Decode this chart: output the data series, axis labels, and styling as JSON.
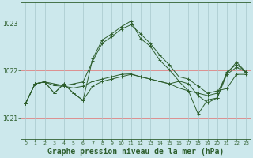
{
  "title": "Graphe pression niveau de la mer (hPa)",
  "background_color": "#cce8ec",
  "grid_color_h": "#e08080",
  "grid_color_v": "#a8c8cc",
  "line_color": "#2d5e2d",
  "ylim": [
    1020.55,
    1023.45
  ],
  "xlim": [
    -0.5,
    23.5
  ],
  "yticks": [
    1021,
    1022,
    1023
  ],
  "xticks": [
    0,
    1,
    2,
    3,
    4,
    5,
    6,
    7,
    8,
    9,
    10,
    11,
    12,
    13,
    14,
    15,
    16,
    17,
    18,
    19,
    20,
    21,
    22,
    23
  ],
  "series": [
    [
      1021.3,
      1021.72,
      1021.76,
      1021.72,
      1021.68,
      1021.72,
      1021.76,
      1022.2,
      1022.58,
      1022.72,
      1022.88,
      1022.97,
      1022.78,
      1022.58,
      1022.33,
      1022.12,
      1021.87,
      1021.82,
      1021.67,
      1021.52,
      1021.57,
      1021.62,
      1021.92,
      1021.92
    ],
    [
      1021.3,
      1021.72,
      1021.76,
      1021.52,
      1021.72,
      1021.52,
      1021.37,
      1022.25,
      1022.65,
      1022.78,
      1022.93,
      1023.05,
      1022.68,
      1022.52,
      1022.22,
      1022.02,
      1021.78,
      1021.72,
      1021.47,
      1021.32,
      1021.42,
      1021.97,
      1022.13,
      1021.97
    ],
    [
      1021.3,
      1021.72,
      1021.76,
      1021.68,
      1021.67,
      1021.63,
      1021.67,
      1021.77,
      1021.82,
      1021.87,
      1021.92,
      1021.93,
      1021.87,
      1021.82,
      1021.77,
      1021.72,
      1021.63,
      1021.57,
      1021.52,
      1021.47,
      1021.52,
      1021.93,
      1022.18,
      1021.97
    ],
    [
      1021.3,
      1021.72,
      1021.76,
      1021.52,
      1021.72,
      1021.52,
      1021.37,
      1021.67,
      1021.77,
      1021.82,
      1021.87,
      1021.92,
      1021.87,
      1021.82,
      1021.77,
      1021.72,
      1021.77,
      1021.57,
      1021.08,
      1021.38,
      1021.42,
      1021.92,
      1022.07,
      1021.97
    ]
  ],
  "ylabel_fontsize": 6,
  "xlabel_fontsize": 6,
  "title_fontsize": 7
}
